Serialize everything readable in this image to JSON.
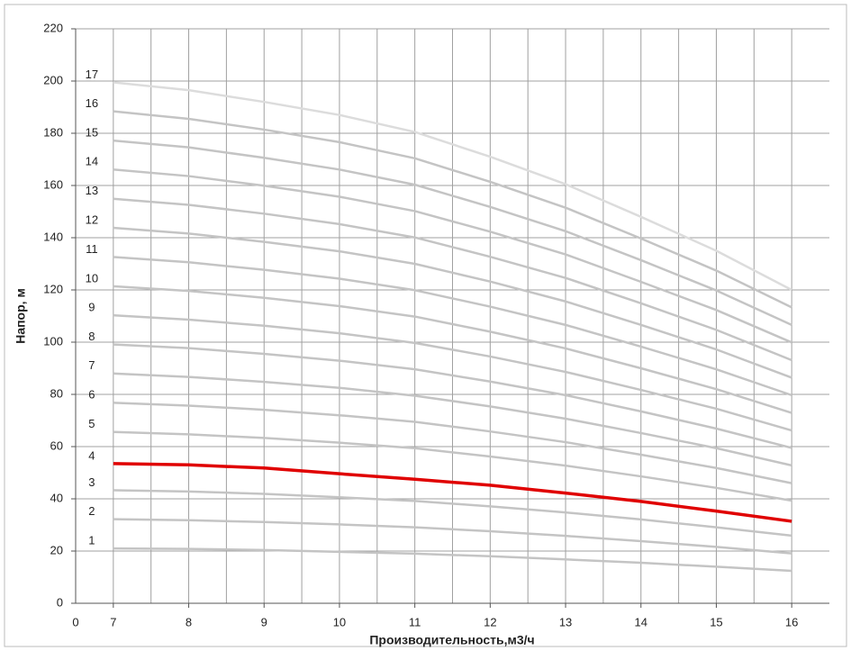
{
  "chart_data": {
    "type": "line",
    "x_label": "Производительность,м3/ч",
    "y_label": "Напор, м",
    "x_origin_label": "0",
    "x": [
      7,
      8,
      9,
      10,
      11,
      12,
      13,
      14,
      15,
      16
    ],
    "xlim": [
      6.5,
      16.5
    ],
    "xticks": [
      7,
      8,
      9,
      10,
      11,
      12,
      13,
      14,
      15,
      16
    ],
    "ylim": [
      0,
      220
    ],
    "yticks": [
      0,
      20,
      40,
      60,
      80,
      100,
      120,
      140,
      160,
      180,
      200,
      220
    ],
    "grid": true,
    "series": [
      {
        "name": "1",
        "color": "#c4c4c4",
        "values": [
          21,
          20.8,
          20.4,
          19.7,
          19,
          18,
          16.8,
          15.5,
          14,
          12.4
        ]
      },
      {
        "name": "2",
        "color": "#c4c4c4",
        "values": [
          32.2,
          31.8,
          31.1,
          30.2,
          29.1,
          27.6,
          25.8,
          23.8,
          21.6,
          19.1
        ]
      },
      {
        "name": "3",
        "color": "#c4c4c4",
        "values": [
          43.3,
          42.8,
          41.9,
          40.6,
          39.2,
          37.1,
          34.8,
          32.1,
          29.1,
          25.9
        ]
      },
      {
        "name": "4",
        "color": "#e00000",
        "values": [
          53.5,
          53,
          51.8,
          49.6,
          47.5,
          45.2,
          42.2,
          39,
          35.3,
          31.4
        ]
      },
      {
        "name": "5",
        "color": "#c4c4c4",
        "values": [
          65.6,
          64.7,
          63.3,
          61.5,
          59.4,
          56.2,
          52.7,
          48.6,
          44.2,
          39.3
        ]
      },
      {
        "name": "6",
        "color": "#c4c4c4",
        "values": [
          76.8,
          75.7,
          74.1,
          72,
          69.5,
          65.8,
          61.7,
          56.9,
          51.8,
          46
        ]
      },
      {
        "name": "7",
        "color": "#c4c4c4",
        "values": [
          88,
          86.7,
          84.8,
          82.5,
          79.5,
          75.4,
          70.7,
          65.2,
          59.4,
          52.8
        ]
      },
      {
        "name": "8",
        "color": "#c4c4c4",
        "values": [
          99.1,
          97.7,
          95.5,
          92.9,
          89.6,
          84.9,
          79.7,
          73.5,
          66.9,
          59.5
        ]
      },
      {
        "name": "9",
        "color": "#c4c4c4",
        "values": [
          110.3,
          108.6,
          106.3,
          103.4,
          99.7,
          94.5,
          88.6,
          81.7,
          74.5,
          66.2
        ]
      },
      {
        "name": "10",
        "color": "#c4c4c4",
        "values": [
          121.4,
          119.6,
          117,
          113.8,
          109.8,
          104,
          97.6,
          90,
          82,
          72.9
        ]
      },
      {
        "name": "11",
        "color": "#c4c4c4",
        "values": [
          132.6,
          130.6,
          127.7,
          124.3,
          119.9,
          113.6,
          106.6,
          98.3,
          89.6,
          79.7
        ]
      },
      {
        "name": "12",
        "color": "#c4c4c4",
        "values": [
          143.8,
          141.6,
          138.4,
          134.8,
          130,
          123.2,
          115.6,
          106.6,
          97.2,
          86.4
        ]
      },
      {
        "name": "13",
        "color": "#c4c4c4",
        "values": [
          154.9,
          152.6,
          149.2,
          145.2,
          140.1,
          132.7,
          124.6,
          114.9,
          104.7,
          93.1
        ]
      },
      {
        "name": "14",
        "color": "#c4c4c4",
        "values": [
          166.1,
          163.6,
          159.9,
          155.7,
          150.2,
          142.3,
          133.6,
          123.1,
          112.3,
          99.9
        ]
      },
      {
        "name": "15",
        "color": "#c4c4c4",
        "values": [
          177.2,
          174.6,
          170.6,
          166.1,
          160.3,
          151.8,
          142.5,
          131.4,
          119.8,
          106.6
        ]
      },
      {
        "name": "16",
        "color": "#c4c4c4",
        "values": [
          188.4,
          185.5,
          181.4,
          176.6,
          170.4,
          161.4,
          151.5,
          139.7,
          127.4,
          113.3
        ]
      },
      {
        "name": "17",
        "color": "#dcdcdc",
        "values": [
          199.5,
          196.5,
          192,
          187,
          180.5,
          171,
          160.5,
          148,
          135,
          120
        ]
      }
    ]
  }
}
